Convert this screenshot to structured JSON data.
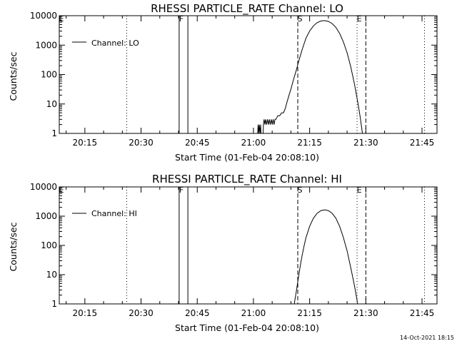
{
  "footer_stamp": "14-Oct-2021 18:15",
  "chart_data": [
    {
      "type": "line",
      "title": "RHESSI PARTICLE_RATE Channel: LO",
      "xlabel": "Start Time (01-Feb-04 20:08:10)",
      "ylabel": "Counts/sec",
      "legend": {
        "label": "Channel: LO",
        "placement": "top-left"
      },
      "y_scale": "log",
      "ylim": [
        1,
        10000
      ],
      "y_ticks": [
        "1",
        "10",
        "100",
        "1000",
        "10000"
      ],
      "xlim": [
        "20:08:10",
        "21:49:00"
      ],
      "x_ticks": [
        "20:15",
        "20:30",
        "20:45",
        "21:00",
        "21:15",
        "21:30",
        "21:45"
      ],
      "grid": false,
      "markers": [
        {
          "label": "E",
          "time": "20:08:10",
          "style": "dotted"
        },
        {
          "label": "",
          "time": "20:26:10",
          "style": "dotted"
        },
        {
          "label": "F",
          "time": "20:40:10",
          "style": "solid"
        },
        {
          "label": "",
          "time": "20:42:30",
          "style": "solid"
        },
        {
          "label": "S",
          "time": "21:11:50",
          "style": "dashed"
        },
        {
          "label": "E",
          "time": "21:27:40",
          "style": "dotted"
        },
        {
          "label": "",
          "time": "21:30:00",
          "style": "dashed"
        },
        {
          "label": "",
          "time": "21:45:40",
          "style": "dotted"
        }
      ],
      "series": [
        {
          "name": "Channel: LO",
          "points": [
            [
              "21:01:00",
              0.5
            ],
            [
              "21:01:15",
              2
            ],
            [
              "21:01:25",
              1
            ],
            [
              "21:01:35",
              2
            ],
            [
              "21:01:45",
              1
            ],
            [
              "21:01:55",
              2
            ],
            [
              "21:02:05",
              0.5
            ],
            [
              "21:02:30",
              0.5
            ],
            [
              "21:02:40",
              2
            ],
            [
              "21:02:50",
              3
            ],
            [
              "21:03:05",
              2
            ],
            [
              "21:03:15",
              3
            ],
            [
              "21:03:30",
              2
            ],
            [
              "21:03:45",
              3
            ],
            [
              "21:04:00",
              2
            ],
            [
              "21:04:15",
              3
            ],
            [
              "21:04:30",
              2
            ],
            [
              "21:04:45",
              3
            ],
            [
              "21:05:00",
              2
            ],
            [
              "21:05:15",
              3
            ],
            [
              "21:05:30",
              2
            ],
            [
              "21:05:45",
              3
            ],
            [
              "21:06:00",
              3
            ],
            [
              "21:06:30",
              4
            ],
            [
              "21:07:00",
              4
            ],
            [
              "21:07:30",
              5
            ],
            [
              "21:08:00",
              5
            ],
            [
              "21:08:30",
              7
            ],
            [
              "21:09:00",
              12
            ],
            [
              "21:09:30",
              20
            ],
            [
              "21:10:00",
              32
            ],
            [
              "21:10:30",
              55
            ],
            [
              "21:11:00",
              90
            ],
            [
              "21:11:30",
              150
            ],
            [
              "21:12:00",
              260
            ],
            [
              "21:12:30",
              430
            ],
            [
              "21:13:00",
              700
            ],
            [
              "21:13:30",
              1100
            ],
            [
              "21:14:00",
              1700
            ],
            [
              "21:15:00",
              3000
            ],
            [
              "21:16:00",
              4500
            ],
            [
              "21:17:00",
              5800
            ],
            [
              "21:18:00",
              6600
            ],
            [
              "21:19:00",
              6800
            ],
            [
              "21:20:00",
              6400
            ],
            [
              "21:21:00",
              5400
            ],
            [
              "21:22:00",
              4000
            ],
            [
              "21:23:00",
              2500
            ],
            [
              "21:24:00",
              1300
            ],
            [
              "21:25:00",
              550
            ],
            [
              "21:26:00",
              180
            ],
            [
              "21:27:00",
              45
            ],
            [
              "21:28:00",
              9
            ],
            [
              "21:28:30",
              3.5
            ],
            [
              "21:29:00",
              1.2
            ],
            [
              "21:29:20",
              0.5
            ]
          ]
        }
      ]
    },
    {
      "type": "line",
      "title": "RHESSI PARTICLE_RATE Channel: HI",
      "xlabel": "Start Time (01-Feb-04 20:08:10)",
      "ylabel": "Counts/sec",
      "legend": {
        "label": "Channel: HI",
        "placement": "top-left"
      },
      "y_scale": "log",
      "ylim": [
        1,
        10000
      ],
      "y_ticks": [
        "1",
        "10",
        "100",
        "1000",
        "10000"
      ],
      "xlim": [
        "20:08:10",
        "21:49:00"
      ],
      "x_ticks": [
        "20:15",
        "20:30",
        "20:45",
        "21:00",
        "21:15",
        "21:30",
        "21:45"
      ],
      "grid": false,
      "markers": [
        {
          "label": "E",
          "time": "20:08:10",
          "style": "dotted"
        },
        {
          "label": "",
          "time": "20:26:10",
          "style": "dotted"
        },
        {
          "label": "F",
          "time": "20:40:10",
          "style": "solid"
        },
        {
          "label": "",
          "time": "20:42:30",
          "style": "solid"
        },
        {
          "label": "S",
          "time": "21:11:50",
          "style": "dashed"
        },
        {
          "label": "E",
          "time": "21:27:40",
          "style": "dotted"
        },
        {
          "label": "",
          "time": "21:30:00",
          "style": "dashed"
        },
        {
          "label": "",
          "time": "21:45:40",
          "style": "dotted"
        }
      ],
      "series": [
        {
          "name": "Channel: HI",
          "points": [
            [
              "21:10:40",
              0.5
            ],
            [
              "21:11:00",
              1.2
            ],
            [
              "21:11:30",
              3
            ],
            [
              "21:12:00",
              8
            ],
            [
              "21:12:30",
              20
            ],
            [
              "21:13:00",
              45
            ],
            [
              "21:13:30",
              95
            ],
            [
              "21:14:00",
              180
            ],
            [
              "21:15:00",
              450
            ],
            [
              "21:16:00",
              850
            ],
            [
              "21:17:00",
              1250
            ],
            [
              "21:18:00",
              1550
            ],
            [
              "21:19:00",
              1650
            ],
            [
              "21:20:00",
              1550
            ],
            [
              "21:21:00",
              1250
            ],
            [
              "21:22:00",
              850
            ],
            [
              "21:23:00",
              450
            ],
            [
              "21:24:00",
              190
            ],
            [
              "21:25:00",
              65
            ],
            [
              "21:26:00",
              17
            ],
            [
              "21:27:00",
              4
            ],
            [
              "21:27:40",
              1.3
            ],
            [
              "21:28:00",
              0.5
            ]
          ]
        }
      ]
    }
  ]
}
